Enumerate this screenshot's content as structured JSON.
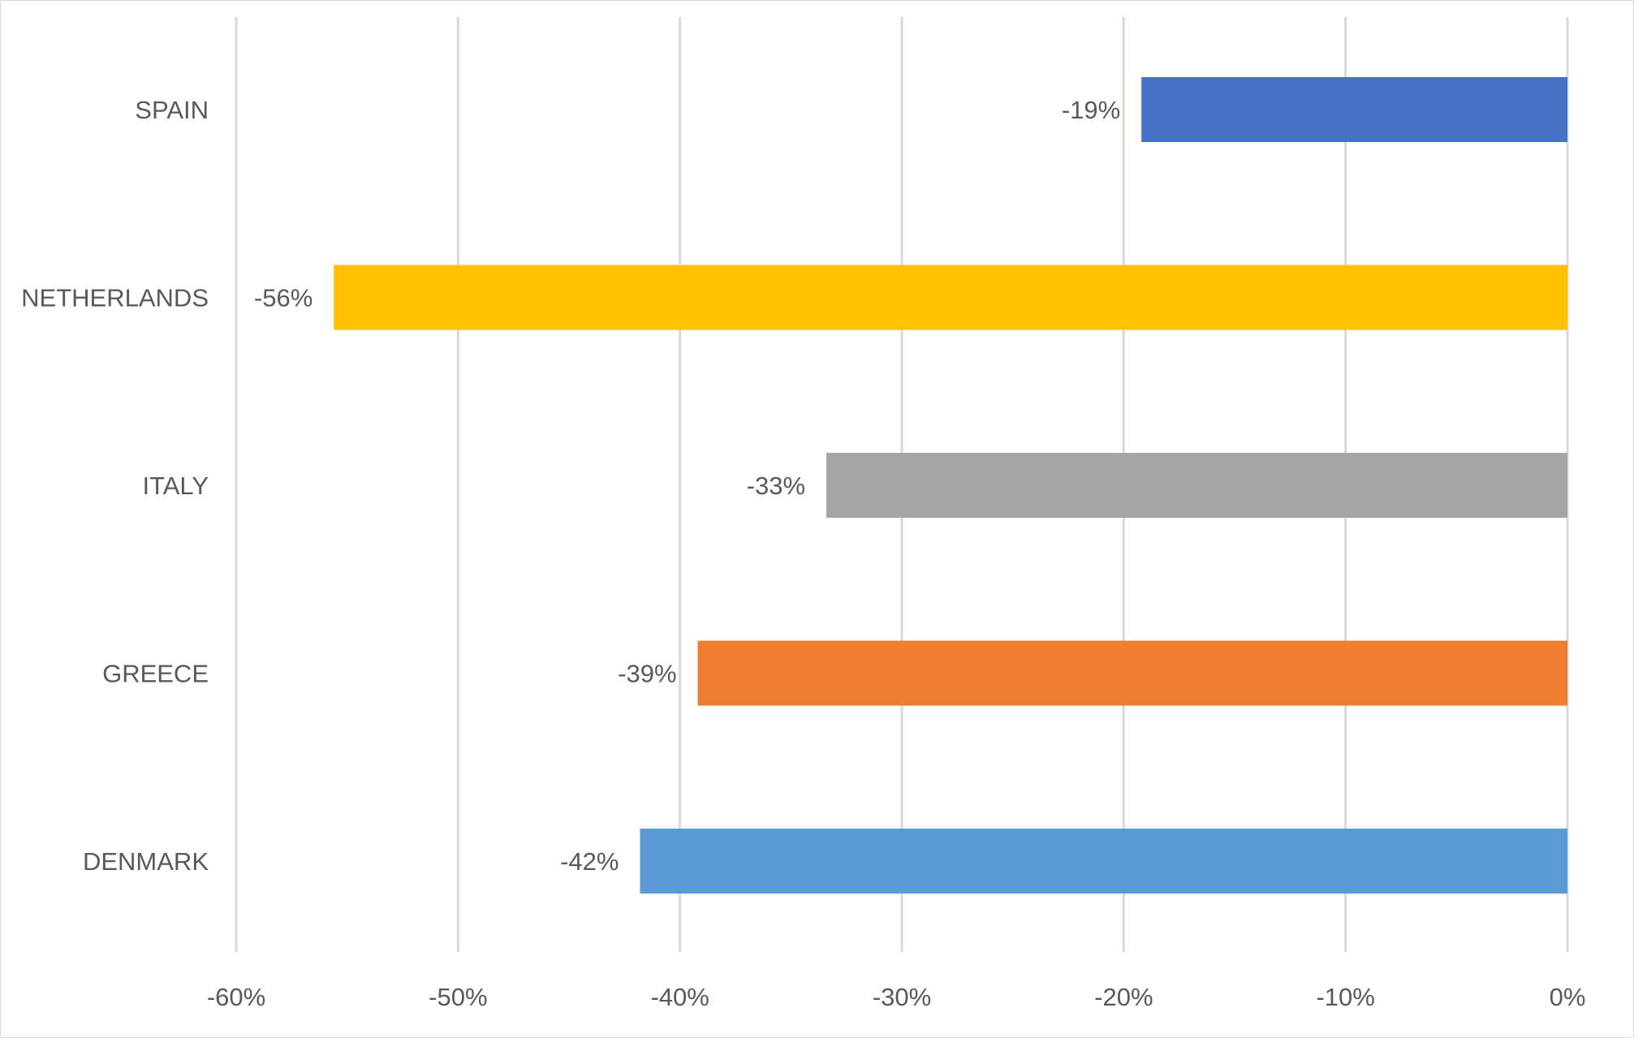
{
  "chart_data": {
    "type": "bar",
    "orientation": "horizontal",
    "title": "",
    "xlabel": "",
    "ylabel": "",
    "categories": [
      "SPAIN",
      "NETHERLANDS",
      "ITALY",
      "GREECE",
      "DENMARK"
    ],
    "values": [
      -19.2,
      -55.6,
      -33.4,
      -39.2,
      -41.8
    ],
    "data_labels": [
      "-19%",
      "-56%",
      "-33%",
      "-39%",
      "-42%"
    ],
    "colors": [
      "#4472c4",
      "#ffc000",
      "#a5a5a5",
      "#ed7d31",
      "#5b9bd5"
    ],
    "xlim": [
      -60,
      0
    ],
    "x_ticks": [
      -60,
      -50,
      -40,
      -30,
      -20,
      -10,
      0
    ],
    "x_tick_labels": [
      "-60%",
      "-50%",
      "-40%",
      "-30%",
      "-20%",
      "-10%",
      "0%"
    ],
    "grid": "vertical",
    "legend": "none"
  }
}
